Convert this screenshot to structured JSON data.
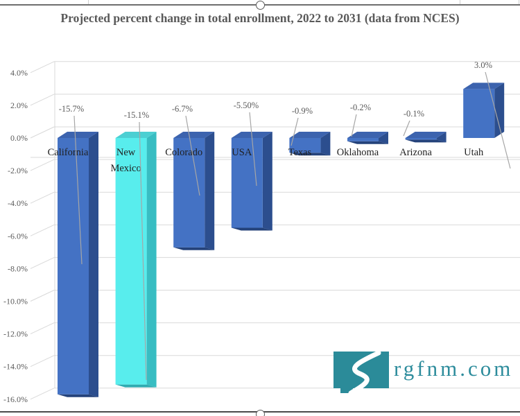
{
  "chart_data": {
    "type": "bar",
    "projection": "3d-column",
    "title": "Projected percent change in total enrollment, 2022 to 2031 (data from NCES)",
    "categories": [
      "California",
      "New Mexico",
      "Colorado",
      "USA",
      "Texas",
      "Oklahoma",
      "Arizona",
      "Utah"
    ],
    "values": [
      -15.7,
      -15.1,
      -6.7,
      -5.5,
      -0.9,
      -0.2,
      -0.1,
      3.0
    ],
    "data_labels": [
      "-15.7%",
      "-15.1%",
      "-6.7%",
      "-5.50%",
      "-0.9%",
      "-0.2%",
      "-0.1%",
      "3.0%"
    ],
    "y_ticks": [
      "4.0%",
      "2.0%",
      "0.0%",
      "-2.0%",
      "-4.0%",
      "-6.0%",
      "-8.0%",
      "-10.0%",
      "-12.0%",
      "-14.0%",
      "-16.0%"
    ],
    "y_tick_values": [
      4,
      2,
      0,
      -2,
      -4,
      -6,
      -8,
      -10,
      -12,
      -14,
      -16
    ],
    "ylim": [
      -16,
      4
    ],
    "grid": true,
    "legend": "none",
    "highlight_index": 1,
    "series_color": {
      "front": "#4472C4",
      "top": "#3C63AE",
      "side": "#2C4E8E",
      "bottom": "#24427A"
    },
    "highlight_color": {
      "front": "#58EDED",
      "top": "#4CCFD2",
      "side": "#38BDC2",
      "bottom": "#2FAAB0"
    },
    "colors": {
      "grid": "#d9d9d9",
      "leader_line": "#a6a6a6",
      "axis_text": "#595959",
      "data_label_text": "#595959",
      "category_text": "#1f1f1f",
      "title_text": "#595959"
    }
  },
  "watermark": {
    "text": "rgfnm.com",
    "color": "#2d8c9c",
    "logo": "new-mexico-state-river-logo"
  }
}
